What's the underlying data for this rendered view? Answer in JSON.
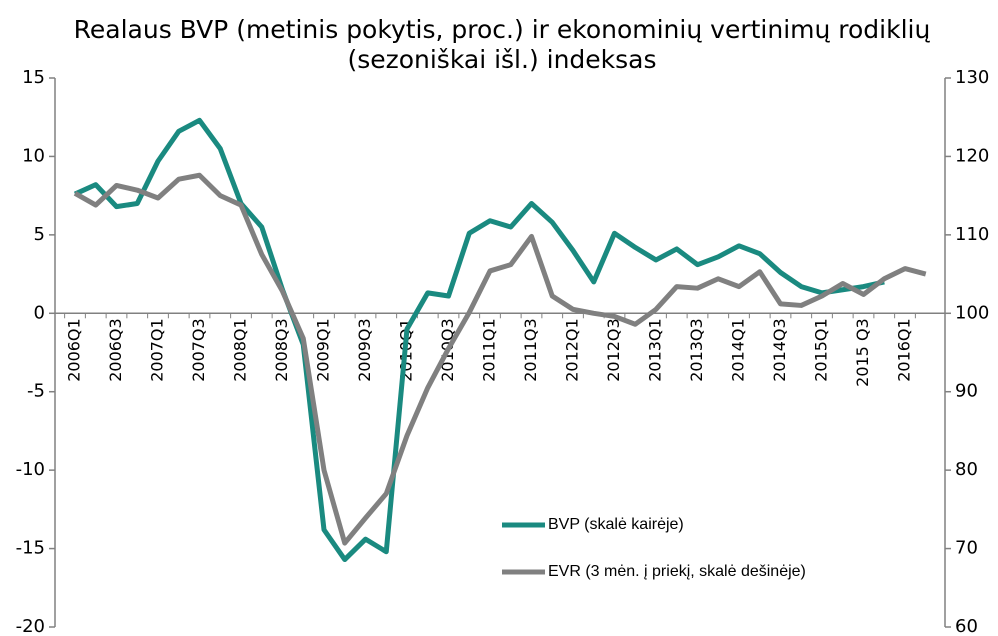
{
  "chart_data": {
    "type": "line",
    "title_lines": [
      "Realaus BVP (metinis pokytis, proc.) ir ekonominių vertinimų rodiklių",
      "(sezoniškai išl.) indeksas"
    ],
    "categories": [
      "2006Q1",
      null,
      "2006Q3",
      null,
      "2007Q1",
      null,
      "2007Q3",
      null,
      "2008Q1",
      null,
      "2008Q3",
      null,
      "2009Q1",
      null,
      "2009Q3",
      null,
      "2010Q1",
      null,
      "2010Q3",
      null,
      "2011Q1",
      null,
      "2011Q3",
      null,
      "2012Q1",
      null,
      "2012Q3",
      null,
      "2013Q1",
      null,
      "2013Q3",
      null,
      "2014Q1",
      null,
      "2014Q3",
      null,
      "2015Q1",
      null,
      "2015 Q3",
      null,
      "2016Q1",
      null
    ],
    "series": [
      {
        "name": "BVP (skalė kairėje)",
        "color": "#1a8a80",
        "axis": "y",
        "values": [
          7.6,
          8.2,
          6.8,
          7.0,
          9.7,
          11.6,
          12.3,
          10.5,
          7.0,
          5.5,
          1.5,
          -2.0,
          -13.8,
          -15.7,
          -14.4,
          -15.2,
          -1.0,
          1.3,
          1.1,
          5.1,
          5.9,
          5.5,
          7.0,
          5.8,
          4.0,
          2.0,
          5.1,
          4.2,
          3.4,
          4.1,
          3.1,
          3.6,
          4.3,
          3.8,
          2.6,
          1.7,
          1.3,
          1.5,
          1.7,
          2.0,
          null,
          null
        ]
      },
      {
        "name": "EVR (3 mėn. į priekį, skalė dešinėje)",
        "color": "#808080",
        "axis": "y2",
        "values": [
          115.3,
          113.8,
          116.3,
          115.7,
          114.7,
          117.1,
          117.6,
          115.0,
          113.8,
          107.5,
          102.8,
          96.8,
          80.0,
          70.7,
          73.9,
          77.0,
          84.4,
          90.5,
          95.5,
          100.1,
          105.4,
          106.2,
          109.8,
          102.2,
          100.5,
          100.0,
          99.6,
          98.6,
          100.5,
          103.4,
          103.2,
          104.4,
          103.4,
          105.3,
          101.2,
          101.0,
          102.2,
          103.8,
          102.4,
          104.4,
          105.7,
          105.0
        ]
      }
    ],
    "ylim": [
      -20,
      15
    ],
    "yticks": [
      -20,
      -15,
      -10,
      -5,
      0,
      5,
      10,
      15
    ],
    "y2lim": [
      60,
      130
    ],
    "y2ticks": [
      60,
      70,
      80,
      90,
      100,
      110,
      120,
      130
    ],
    "legend": "lower-center"
  }
}
